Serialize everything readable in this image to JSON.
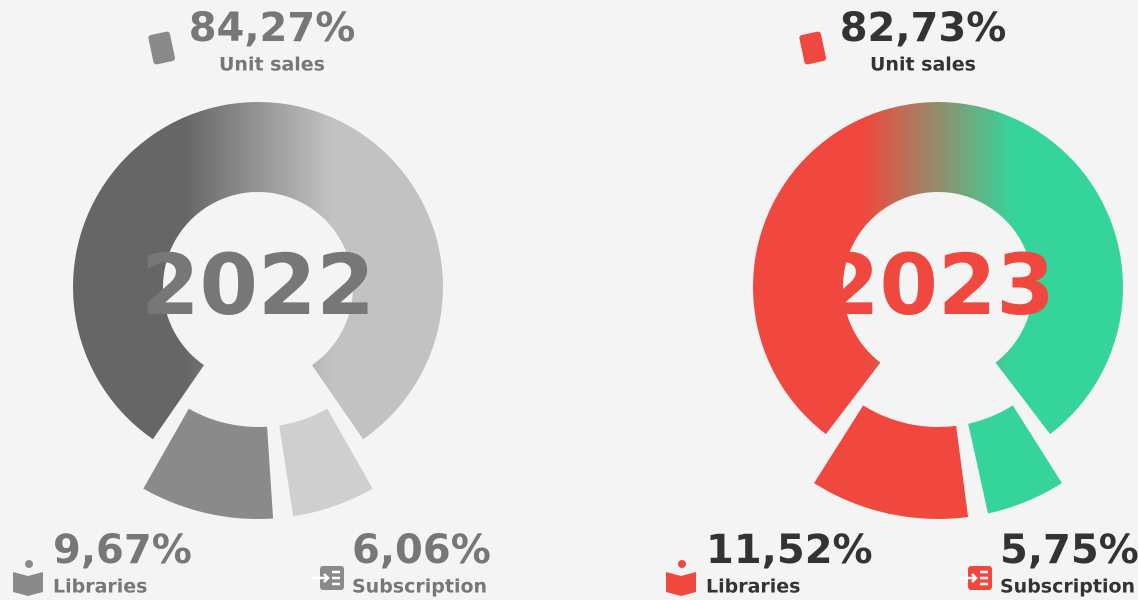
{
  "chart_data": [
    {
      "type": "donut",
      "center_label": "2022",
      "categories": [
        "Unit sales",
        "Libraries",
        "Subscription"
      ],
      "values": [
        84.27,
        9.67,
        6.06
      ],
      "value_labels": [
        "84,27%",
        "9,67%",
        "6,06%"
      ],
      "colors": [
        "#6b6b6b",
        "#8a8a8a",
        "#cfcfcf"
      ],
      "gradient": [
        "#666666",
        "#c2c2c2"
      ],
      "text_color": "#777777",
      "center_color": "#777777",
      "icon_color": "#8a8a8a"
    },
    {
      "type": "donut",
      "center_label": "2023",
      "categories": [
        "Unit sales",
        "Libraries",
        "Subscription"
      ],
      "values": [
        82.73,
        11.52,
        5.75
      ],
      "value_labels": [
        "82,73%",
        "11,52%",
        "5,75%"
      ],
      "colors": [
        "#f0483e",
        "#f0483e",
        "#35d49a"
      ],
      "gradient": [
        "#f0483e",
        "#35d49a"
      ],
      "text_color": "#333333",
      "center_color": "#f0483e",
      "icon_color": "#f0483e"
    }
  ]
}
